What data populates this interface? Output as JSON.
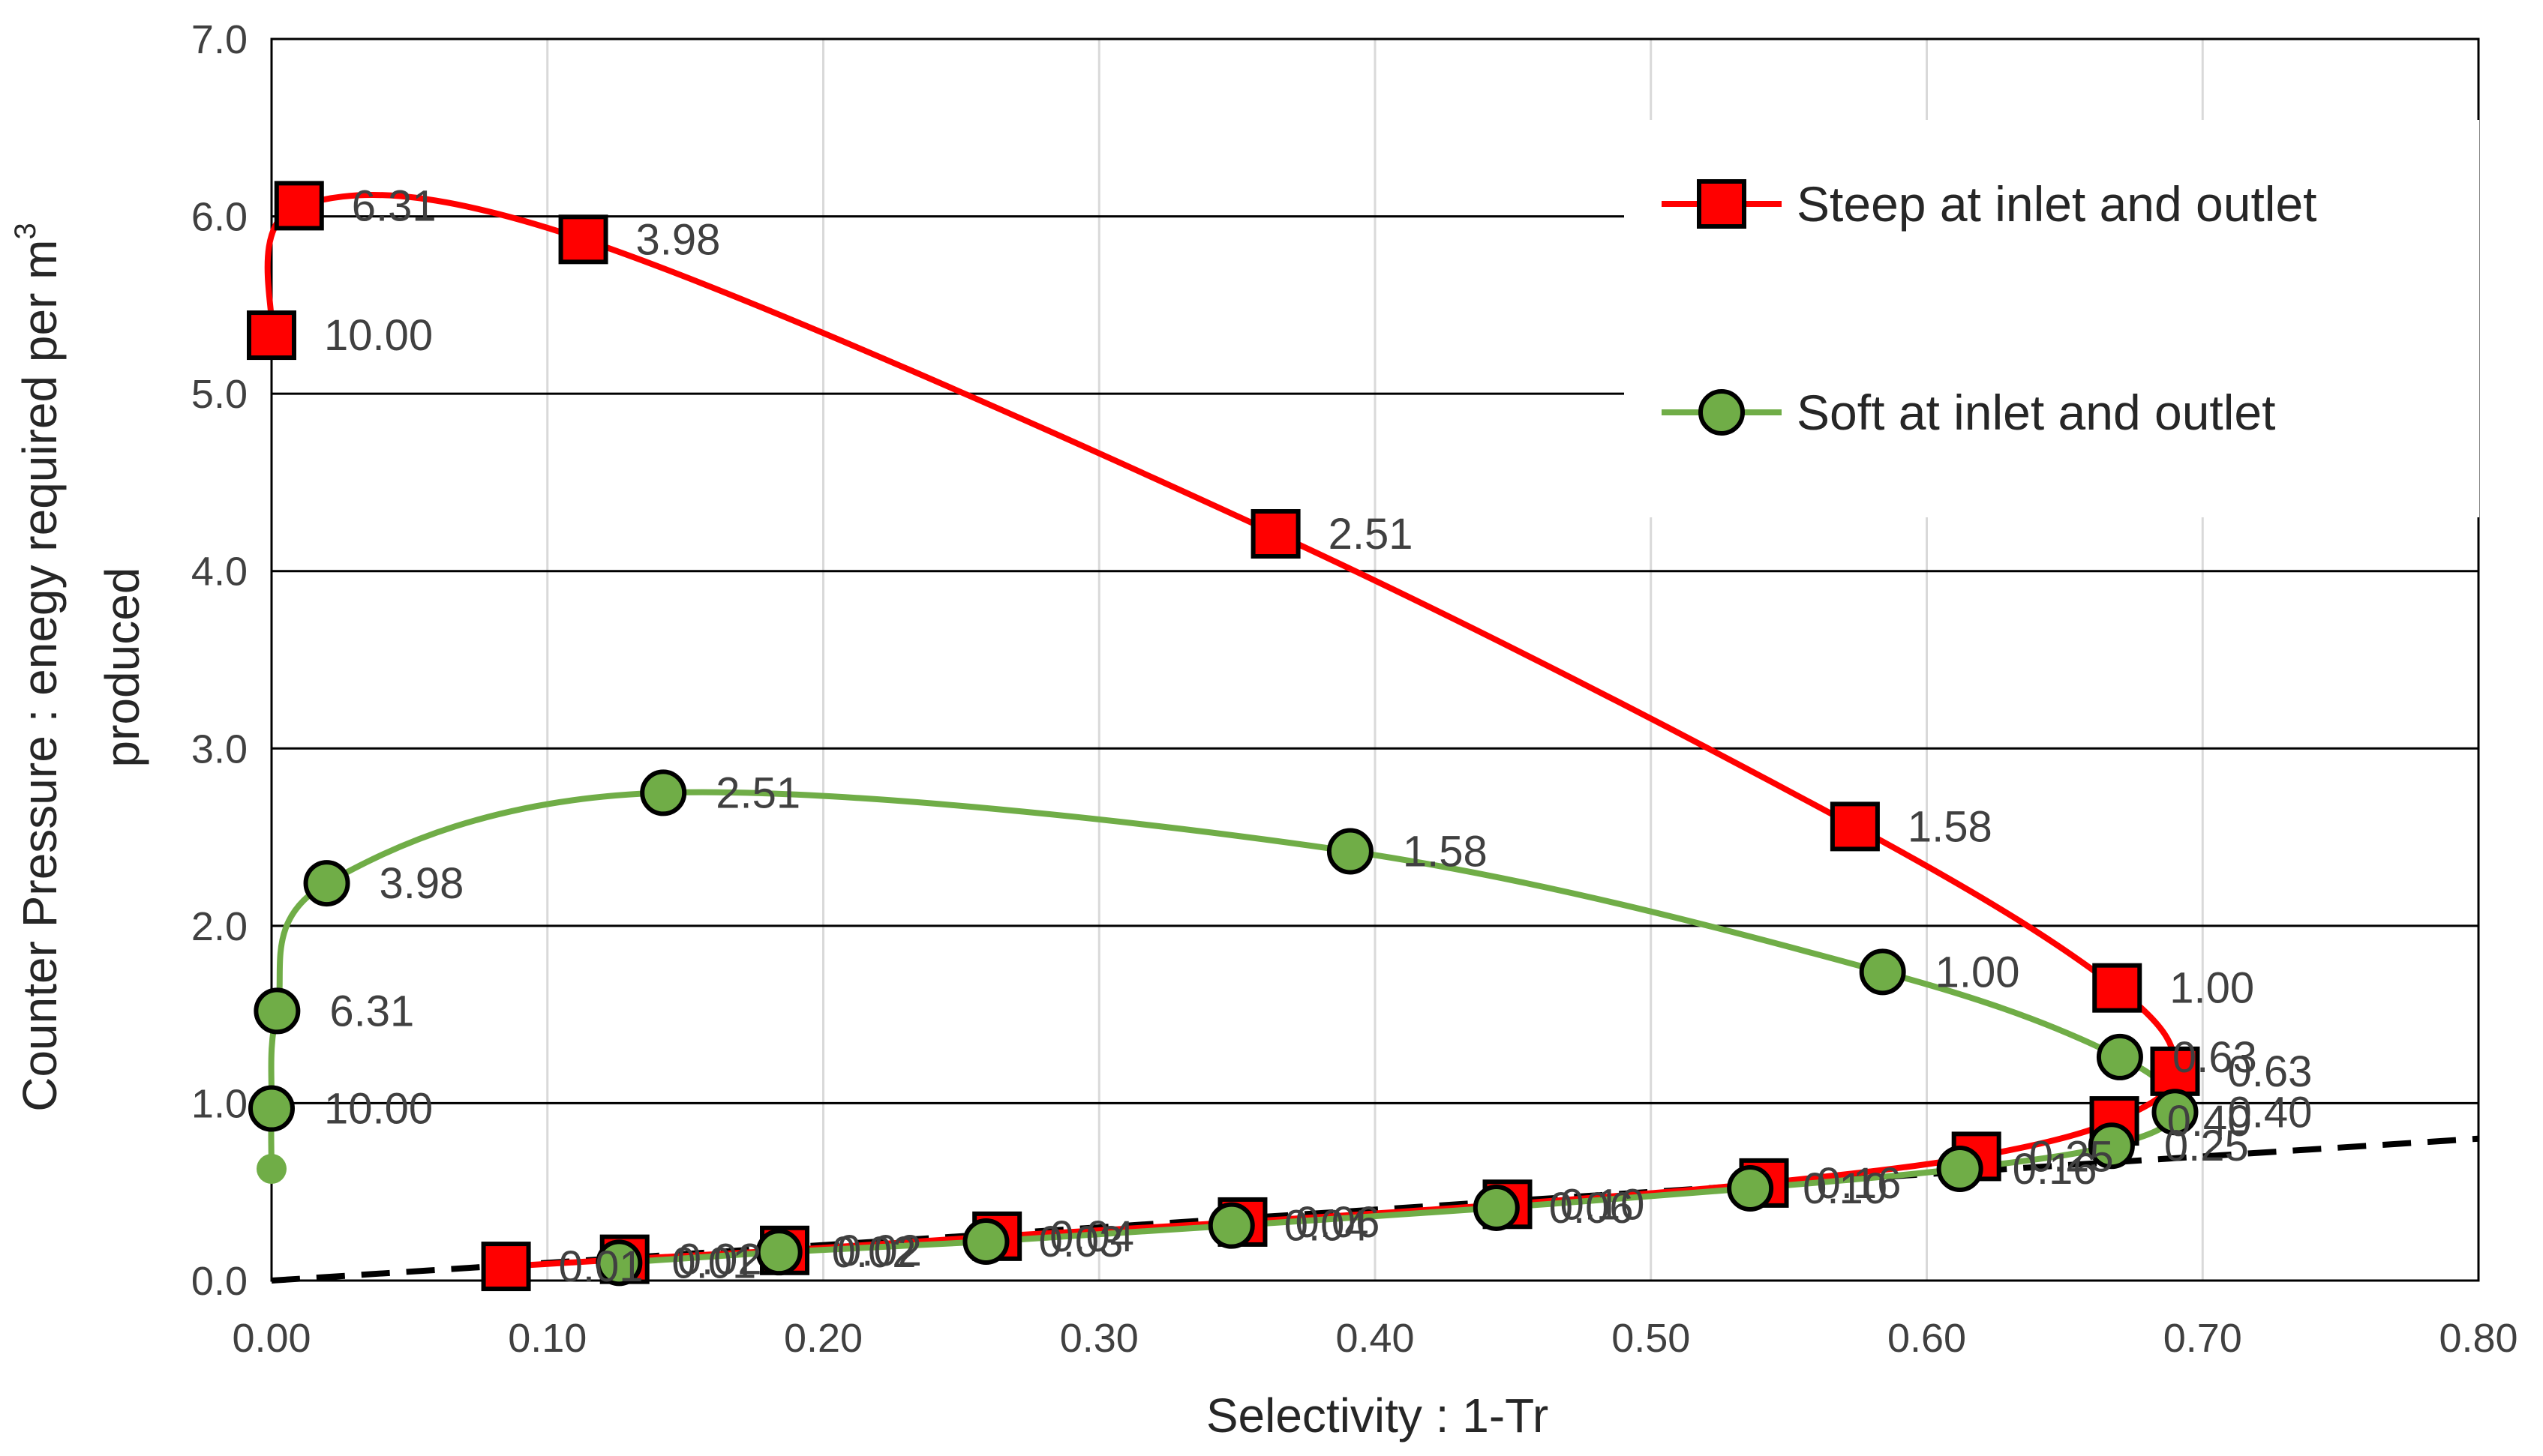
{
  "chart_data": {
    "type": "scatter",
    "xlabel": "Selectivity : 1-Tr",
    "ylabel_line1": "Counter Pressure : enegy required per m",
    "ylabel_sup": "3",
    "ylabel_line2": "produced",
    "xlim": [
      0,
      0.8
    ],
    "ylim": [
      0,
      7
    ],
    "x_ticks": [
      "0.00",
      "0.10",
      "0.20",
      "0.30",
      "0.40",
      "0.50",
      "0.60",
      "0.70",
      "0.80"
    ],
    "y_ticks": [
      "0.0",
      "1.0",
      "2.0",
      "3.0",
      "4.0",
      "5.0",
      "6.0",
      "7.0"
    ],
    "grid": "both",
    "legend_position": "top-right",
    "series": [
      {
        "name": "Steep at inlet and outlet",
        "color": "#ff0000",
        "marker": "square",
        "points": [
          {
            "x": 0.085,
            "y": 0.08,
            "label": "0.01"
          },
          {
            "x": 0.128,
            "y": 0.12,
            "label": "0.02"
          },
          {
            "x": 0.186,
            "y": 0.17,
            "label": "0.02"
          },
          {
            "x": 0.263,
            "y": 0.25,
            "label": "0.04"
          },
          {
            "x": 0.352,
            "y": 0.33,
            "label": "0.06"
          },
          {
            "x": 0.448,
            "y": 0.43,
            "label": "0.10"
          },
          {
            "x": 0.541,
            "y": 0.55,
            "label": "0.16"
          },
          {
            "x": 0.618,
            "y": 0.7,
            "label": "0.25"
          },
          {
            "x": 0.668,
            "y": 0.9,
            "label": "0.40"
          },
          {
            "x": 0.69,
            "y": 1.18,
            "label": "0.63"
          },
          {
            "x": 0.669,
            "y": 1.65,
            "label": "1.00"
          },
          {
            "x": 0.574,
            "y": 2.56,
            "label": "1.58"
          },
          {
            "x": 0.364,
            "y": 4.21,
            "label": "2.51"
          },
          {
            "x": 0.113,
            "y": 5.87,
            "label": "3.98"
          },
          {
            "x": 0.01,
            "y": 6.06,
            "label": "6.31"
          },
          {
            "x": 0.0,
            "y": 5.33,
            "label": "10.00"
          }
        ]
      },
      {
        "name": "Soft at inlet and outlet",
        "color": "#70ad47",
        "marker": "circle",
        "points": [
          {
            "x": 0.126,
            "y": 0.1,
            "label": "0.01"
          },
          {
            "x": 0.184,
            "y": 0.16,
            "label": "0.02"
          },
          {
            "x": 0.259,
            "y": 0.22,
            "label": "0.03"
          },
          {
            "x": 0.348,
            "y": 0.31,
            "label": "0.04"
          },
          {
            "x": 0.444,
            "y": 0.41,
            "label": "0.06"
          },
          {
            "x": 0.536,
            "y": 0.52,
            "label": "0.10"
          },
          {
            "x": 0.612,
            "y": 0.63,
            "label": "0.16"
          },
          {
            "x": 0.667,
            "y": 0.76,
            "label": "0.25"
          },
          {
            "x": 0.69,
            "y": 0.95,
            "label": "0.40"
          },
          {
            "x": 0.67,
            "y": 1.26,
            "label": "0.63"
          },
          {
            "x": 0.584,
            "y": 1.74,
            "label": "1.00"
          },
          {
            "x": 0.391,
            "y": 2.42,
            "label": "1.58"
          },
          {
            "x": 0.142,
            "y": 2.75,
            "label": "2.51"
          },
          {
            "x": 0.02,
            "y": 2.24,
            "label": "3.98"
          },
          {
            "x": 0.002,
            "y": 1.52,
            "label": "6.31"
          },
          {
            "x": 0.0,
            "y": 0.97,
            "label": "10.00"
          }
        ],
        "curve_end": {
          "x": 0.0,
          "y": 0.63
        }
      }
    ],
    "reference_line": {
      "style": "dashed",
      "color": "#000000",
      "from": {
        "x": 0.0,
        "y": 0.0
      },
      "to": {
        "x": 0.8,
        "y": 0.8
      }
    }
  }
}
